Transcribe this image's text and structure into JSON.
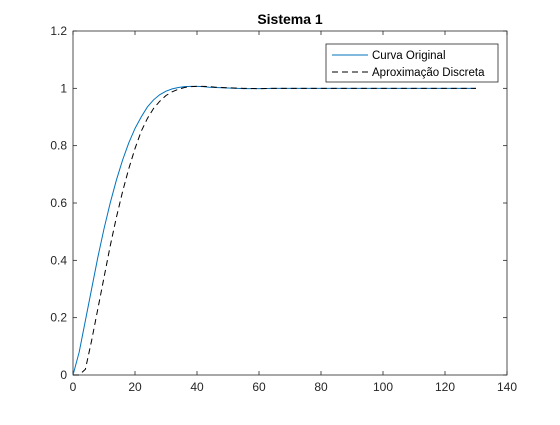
{
  "chart_data": {
    "type": "line",
    "title": "Sistema 1",
    "xlabel": "",
    "ylabel": "",
    "xlim": [
      0,
      140
    ],
    "ylim": [
      0,
      1.2
    ],
    "x_ticks": [
      0,
      20,
      40,
      60,
      80,
      100,
      120,
      140
    ],
    "y_ticks": [
      0,
      0.2,
      0.4,
      0.6,
      0.8,
      1,
      1.2
    ],
    "x_tick_labels": [
      "0",
      "20",
      "40",
      "60",
      "80",
      "100",
      "120",
      "140"
    ],
    "y_tick_labels": [
      "0",
      "0.2",
      "0.4",
      "0.6",
      "0.8",
      "1",
      "1.2"
    ],
    "grid": false,
    "legend_position": "top-right",
    "series": [
      {
        "name": "Curva Original",
        "color": "#0072BD",
        "style": "solid",
        "x": [
          0,
          2,
          4,
          6,
          8,
          10,
          12,
          14,
          16,
          18,
          20,
          22,
          24,
          26,
          28,
          30,
          32,
          34,
          36,
          38,
          40,
          42,
          44,
          46,
          48,
          50,
          55,
          60,
          65,
          70,
          80,
          90,
          100,
          110,
          120,
          130
        ],
        "y": [
          0,
          0.08,
          0.19,
          0.3,
          0.41,
          0.51,
          0.6,
          0.68,
          0.75,
          0.81,
          0.86,
          0.9,
          0.935,
          0.96,
          0.978,
          0.99,
          0.998,
          1.003,
          1.006,
          1.007,
          1.007,
          1.006,
          1.004,
          1.003,
          1.002,
          1.001,
          0.999,
          0.999,
          1.0,
          1.0,
          1.0,
          1.0,
          1.0,
          1.0,
          1.0,
          1.0
        ]
      },
      {
        "name": "Aproximação Discreta",
        "color": "#000000",
        "style": "dashed",
        "x": [
          0,
          2,
          4,
          6,
          8,
          10,
          12,
          14,
          16,
          18,
          20,
          22,
          24,
          26,
          28,
          30,
          32,
          34,
          36,
          38,
          40,
          42,
          44,
          46,
          48,
          50,
          55,
          60,
          65,
          70,
          80,
          90,
          100,
          110,
          120,
          130
        ],
        "y": [
          0,
          0,
          0.02,
          0.12,
          0.23,
          0.34,
          0.45,
          0.55,
          0.64,
          0.72,
          0.79,
          0.85,
          0.895,
          0.93,
          0.955,
          0.975,
          0.988,
          0.997,
          1.003,
          1.006,
          1.007,
          1.007,
          1.006,
          1.004,
          1.003,
          1.002,
          1.0,
          0.999,
          1.0,
          1.0,
          1.0,
          1.0,
          1.0,
          1.0,
          1.0,
          1.0
        ]
      }
    ]
  }
}
